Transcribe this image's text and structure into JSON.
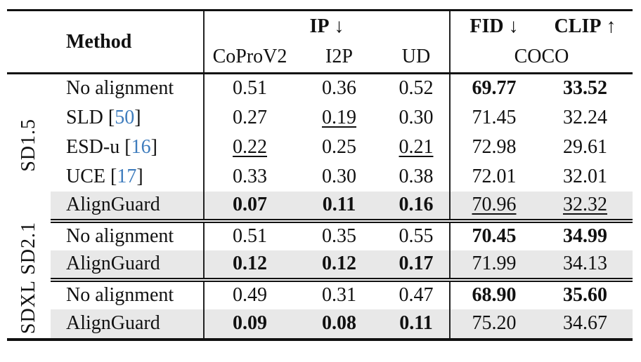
{
  "colors": {
    "citation": "#3e7cbd",
    "highlight": "#e8e8e8",
    "rule": "#111111"
  },
  "header": {
    "method": "Method",
    "ip": "IP",
    "ip_arrow": "↓",
    "fid": "FID",
    "fid_arrow": "↓",
    "clip": "CLIP",
    "clip_arrow": "↑",
    "coprov2": "CoProV2",
    "i2p": "I2P",
    "ud": "UD",
    "coco": "COCO"
  },
  "sections": [
    {
      "group": "SD1.5",
      "rows": [
        {
          "method": "No alignment",
          "coprov2": "0.51",
          "i2p": "0.36",
          "ud": "0.52",
          "fid": "69.77",
          "clip": "33.52"
        },
        {
          "method": "SLD",
          "cite_open": " [",
          "cite": "50",
          "cite_close": "]",
          "coprov2": "0.27",
          "i2p": "0.19",
          "ud": "0.30",
          "fid": "71.45",
          "clip": "32.24"
        },
        {
          "method": "ESD-u",
          "cite_open": " [",
          "cite": "16",
          "cite_close": "]",
          "coprov2": "0.22",
          "i2p": "0.25",
          "ud": "0.21",
          "fid": "72.98",
          "clip": "29.61"
        },
        {
          "method": "UCE",
          "cite_open": " [",
          "cite": "17",
          "cite_close": "]",
          "coprov2": "0.33",
          "i2p": "0.30",
          "ud": "0.38",
          "fid": "72.01",
          "clip": "32.01"
        },
        {
          "method": "AlignGuard",
          "coprov2": "0.07",
          "i2p": "0.11",
          "ud": "0.16",
          "fid": "70.96",
          "clip": "32.32"
        }
      ]
    },
    {
      "group": "SD2.1",
      "rows": [
        {
          "method": "No alignment",
          "coprov2": "0.51",
          "i2p": "0.35",
          "ud": "0.55",
          "fid": "70.45",
          "clip": "34.99"
        },
        {
          "method": "AlignGuard",
          "coprov2": "0.12",
          "i2p": "0.12",
          "ud": "0.17",
          "fid": "71.99",
          "clip": "34.13"
        }
      ]
    },
    {
      "group": "SDXL",
      "rows": [
        {
          "method": "No alignment",
          "coprov2": "0.49",
          "i2p": "0.31",
          "ud": "0.47",
          "fid": "68.90",
          "clip": "35.60"
        },
        {
          "method": "AlignGuard",
          "coprov2": "0.09",
          "i2p": "0.08",
          "ud": "0.11",
          "fid": "75.20",
          "clip": "34.67"
        }
      ]
    }
  ]
}
